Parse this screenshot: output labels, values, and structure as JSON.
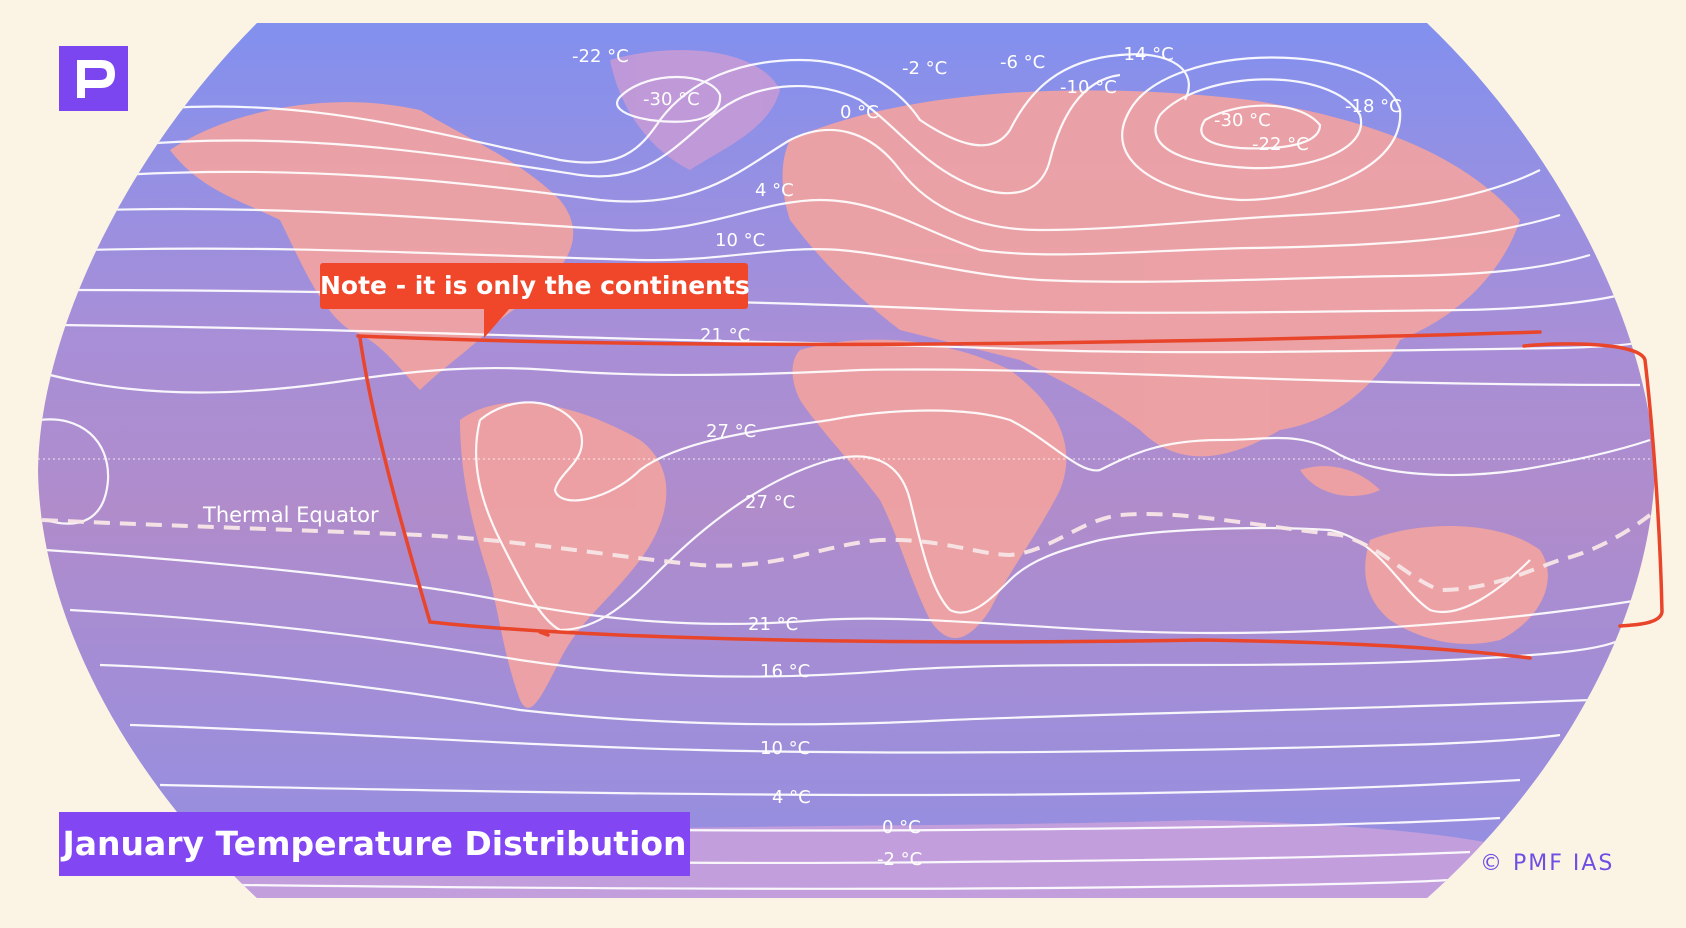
{
  "title": "January Temperature Distribution",
  "callout_note": "Note - it is only the continents",
  "copyright": "© PMF IAS",
  "logo_letter": "P",
  "thermal_equator_label": "Thermal Equator",
  "isotherm_labels": {
    "n_minus22": "-22 °C",
    "n_minus30_west": "-30 °C",
    "n_minus2": "-2 °C",
    "n_minus6": "-6 °C",
    "n_minus14": "-14 °C",
    "n_minus10": "-10 °C",
    "n_0": "0 °C",
    "n_minus30_east": "-30 °C",
    "n_minus18": "-18 °C",
    "n_minus22_east": "-22 °C",
    "n_4": "4 °C",
    "n_10": "10 °C",
    "n_21": "21 °C",
    "n_27a": "27 °C",
    "n_27b": "27 °C",
    "s_21": "21 °C",
    "s_16": "16 °C",
    "s_10": "10 °C",
    "s_4": "4 °C",
    "s_0": "0 °C",
    "s_minus2": "-2 °C"
  },
  "colors": {
    "page_background": "#fbf4e4",
    "ocean": "#8c88d6",
    "land_warm": "#f5a59a",
    "isotherm": "#ffffff",
    "highlight_box": "#e8452a",
    "brand": "#7b45f0"
  }
}
